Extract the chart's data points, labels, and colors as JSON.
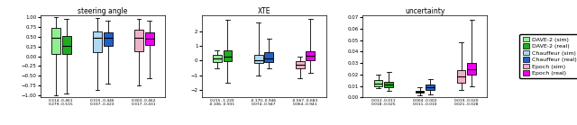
{
  "title1": "steering angle",
  "title2": "XTE",
  "title3": "uncertainty",
  "colors": {
    "dave2_sim": "#90EE90",
    "dave2_real": "#22AA22",
    "chauffeur_sim": "#B0D8F0",
    "chauffeur_real": "#2060CC",
    "epoch_sim": "#F0B0C8",
    "epoch_real": "#EE00EE"
  },
  "legend_labels": [
    "DAVE-2 (sim)",
    "DAVE-2 (real)",
    "Chauffeur (sim)",
    "Chauffeur (real)",
    "Epoch (sim)",
    "Epoch (real)"
  ],
  "steering": {
    "dave2_sim": {
      "whislo": -1.0,
      "q1": 0.05,
      "med": 0.46,
      "q3": 0.73,
      "whishi": 1.0
    },
    "dave2_real": {
      "whislo": -0.95,
      "q1": 0.05,
      "med": 0.27,
      "q3": 0.52,
      "whishi": 0.95
    },
    "chauffeur_sim": {
      "whislo": -0.85,
      "q1": 0.1,
      "med": 0.46,
      "q3": 0.64,
      "whishi": 0.97
    },
    "chauffeur_real": {
      "whislo": -0.7,
      "q1": 0.27,
      "med": 0.48,
      "q3": 0.6,
      "whishi": 0.9
    },
    "epoch_sim": {
      "whislo": -0.75,
      "q1": 0.12,
      "med": 0.46,
      "q3": 0.68,
      "whishi": 0.95
    },
    "epoch_real": {
      "whislo": -0.55,
      "q1": 0.28,
      "med": 0.44,
      "q3": 0.6,
      "whishi": 0.9
    }
  },
  "xte": {
    "dave2_sim": {
      "whislo": -0.55,
      "q1": -0.08,
      "med": 0.15,
      "q3": 0.42,
      "whishi": 0.68
    },
    "dave2_real": {
      "whislo": -1.5,
      "q1": -0.02,
      "med": 0.28,
      "q3": 0.68,
      "whishi": 2.8
    },
    "chauffeur_sim": {
      "whislo": -1.0,
      "q1": -0.18,
      "med": 0.05,
      "q3": 0.38,
      "whishi": 2.6
    },
    "chauffeur_real": {
      "whislo": -0.5,
      "q1": -0.1,
      "med": 0.18,
      "q3": 0.6,
      "whishi": 1.5
    },
    "epoch_sim": {
      "whislo": -1.2,
      "q1": -0.55,
      "med": -0.25,
      "q3": -0.05,
      "whishi": 0.25
    },
    "epoch_real": {
      "whislo": -0.8,
      "q1": 0.05,
      "med": 0.32,
      "q3": 0.62,
      "whishi": 2.85
    }
  },
  "uncertainty": {
    "dave2_sim": {
      "whislo": 0.008,
      "q1": 0.01,
      "med": 0.012,
      "q3": 0.015,
      "whishi": 0.02
    },
    "dave2_real": {
      "whislo": 0.006,
      "q1": 0.009,
      "med": 0.011,
      "q3": 0.014,
      "whishi": 0.022
    },
    "chauffeur_sim": {
      "whislo": 0.002,
      "q1": 0.004,
      "med": 0.005,
      "q3": 0.006,
      "whishi": 0.009
    },
    "chauffeur_real": {
      "whislo": 0.003,
      "q1": 0.007,
      "med": 0.009,
      "q3": 0.011,
      "whishi": 0.016
    },
    "epoch_sim": {
      "whislo": 0.007,
      "q1": 0.013,
      "med": 0.018,
      "q3": 0.024,
      "whishi": 0.048
    },
    "epoch_real": {
      "whislo": 0.01,
      "q1": 0.02,
      "med": 0.025,
      "q3": 0.03,
      "whishi": 0.068
    }
  },
  "steering_ylim": [
    -1.05,
    1.05
  ],
  "xte_ylim": [
    -2.5,
    3.1
  ],
  "uncertainty_ylim": [
    0.0,
    0.072
  ],
  "steering_yticks": [
    -1.0,
    -0.75,
    -0.5,
    -0.25,
    0.0,
    0.25,
    0.5,
    0.75,
    1.0
  ],
  "xte_yticks": [
    -2,
    -1,
    0,
    1,
    2
  ],
  "uncertainty_yticks": [
    0.0,
    0.01,
    0.02,
    0.03,
    0.04,
    0.05,
    0.06,
    0.07
  ],
  "steering_xlabels": [
    "0.314..0.461\n0.279..0.515",
    "0.315..0.446\n0.337..0.423",
    "0.303..0.462\n0.317..0.431"
  ],
  "xte_xlabels": [
    "0.215..1.220\n-0.106..0.931",
    "-0.170..0.946\n0.074..0.947",
    "-0.567..0.683\n0.064..0.941"
  ],
  "uncertainty_xlabels": [
    "0.012..0.011\n0.018..0.025",
    "0.004..0.002\n0.011..0.010",
    "0.019..0.020\n0.021..0.028"
  ],
  "figsize": [
    6.4,
    1.39
  ],
  "dpi": 100
}
